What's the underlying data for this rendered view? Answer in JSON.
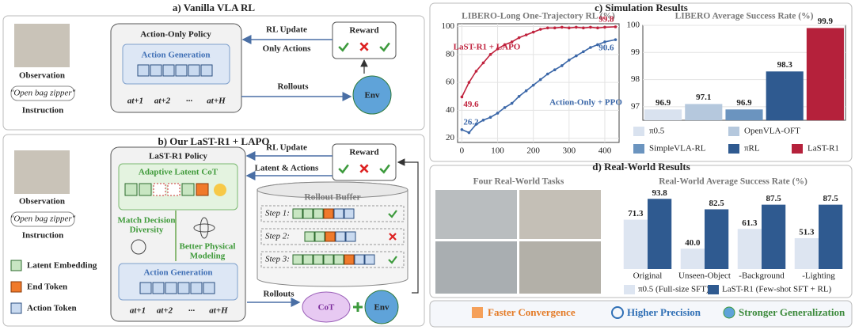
{
  "panel_a": {
    "title": "a) Vanilla VLA RL",
    "policy": "Action-Only Policy",
    "module": "Action Generation",
    "observation": "Observation",
    "instruction_text": "\"Open bag zipper\"",
    "instruction": "Instruction",
    "actions": [
      "at+1",
      "at+2",
      "···",
      "at+H"
    ],
    "update": "RL Update",
    "update_note": "Only Actions",
    "reward": "Reward",
    "rollouts": "Rollouts",
    "env": "Env"
  },
  "panel_b": {
    "title": "b) Our LaST-R1 + LAPO",
    "policy": "LaST-R1 Policy",
    "latent_module": "Adaptive Latent CoT",
    "latent_note": [
      "Match Decision",
      "Diversity"
    ],
    "physical_note": [
      "Better Physical",
      "Modeling"
    ],
    "module": "Action Generation",
    "observation": "Observation",
    "instruction_text": "\"Open bag zipper\"",
    "instruction": "Instruction",
    "actions": [
      "at+1",
      "at+2",
      "···",
      "at+H"
    ],
    "update": "RL Update",
    "update_note": "Latent & Actions",
    "reward": "Reward",
    "buffer": "Rollout Buffer",
    "steps": [
      "Step 1:",
      "Step 2:",
      "Step 3:"
    ],
    "rollouts": "Rollouts",
    "cot": "CoT",
    "env": "Env",
    "legend": [
      "Latent Embedding",
      "End Token",
      "Action Token"
    ]
  },
  "panel_c": {
    "title": "c) Simulation Results"
  },
  "panel_d": {
    "title": "d) Real-World Results",
    "photos": "Four Real-World Tasks"
  },
  "highlights": [
    "Faster Convergence",
    "Higher Precision",
    "Stronger Generalization"
  ],
  "chart_data": [
    {
      "type": "line",
      "title": "LIBERO-Long One-Trajectory RL (%)",
      "x": [
        0,
        20,
        40,
        60,
        80,
        100,
        120,
        140,
        160,
        180,
        200,
        220,
        240,
        260,
        280,
        300,
        320,
        340,
        360,
        380,
        400,
        430
      ],
      "series": [
        {
          "name": "LaST-R1 + LAPO",
          "color": "#c0223d",
          "values": [
            49.6,
            60,
            68,
            74,
            80,
            84,
            87,
            89,
            92,
            94,
            96,
            98,
            99,
            99,
            99.5,
            99,
            99.5,
            99,
            99.5,
            99,
            99.5,
            99.8
          ]
        },
        {
          "name": "Action-Only + PPO",
          "color": "#3b67a8",
          "values": [
            26.2,
            24,
            30,
            33,
            35,
            38,
            42,
            45,
            50,
            54,
            58,
            62,
            66,
            69,
            72,
            76,
            79,
            82,
            85,
            87,
            89,
            90.6
          ]
        }
      ],
      "xlim": [
        -12,
        440
      ],
      "xticks": [
        0,
        100,
        200,
        300,
        400
      ],
      "ylim": [
        17,
        102
      ],
      "yticks": [
        20,
        40,
        60,
        80,
        100
      ],
      "grid": true
    },
    {
      "type": "bar",
      "title": "LIBERO Average Success Rate (%)",
      "categories": [
        "π0.5",
        "OpenVLA-OFT",
        "SimpleVLA-RL",
        "πRL",
        "LaST-R1"
      ],
      "values": [
        96.9,
        97.1,
        96.9,
        98.3,
        99.9
      ],
      "colors": [
        "#d9e2ef",
        "#b5c8dd",
        "#6b94bf",
        "#2f5a90",
        "#b5213b"
      ],
      "ylim": [
        96.5,
        100
      ],
      "yticks": [
        97,
        98,
        99,
        100
      ],
      "grid": true
    },
    {
      "type": "grouped_bar",
      "title": "Real-World Average Success Rate (%)",
      "categories": [
        "Original",
        "Unseen-Object",
        "-Background",
        "-Lighting"
      ],
      "series": [
        {
          "name": "π0.5 (Full-size SFT)",
          "color": "#dde5f1",
          "values": [
            71.3,
            40.0,
            61.3,
            51.3
          ],
          "value_labels": [
            "71.3",
            "40.0",
            "61.3",
            "51.3"
          ]
        },
        {
          "name": "LaST-R1 (Few-shot SFT + RL)",
          "color": "#2f5a90",
          "values": [
            93.8,
            82.5,
            87.5,
            87.5
          ]
        }
      ],
      "ylim": [
        18,
        100
      ]
    }
  ]
}
